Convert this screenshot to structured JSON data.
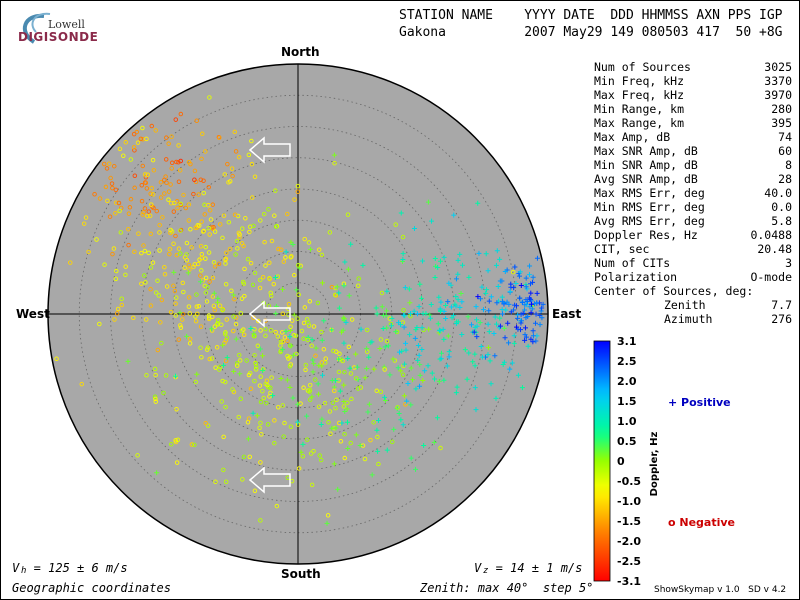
{
  "logo": {
    "line1": "Lowell",
    "line2": "DIGISONDE"
  },
  "header": {
    "line1": "STATION NAME    YYYY DATE  DDD HHMMSS AXN PPS IGP",
    "line2": "Gakona          2007 May29 149 080503 417  50 +8G"
  },
  "stats": [
    {
      "label": "Num of Sources",
      "value": "3025"
    },
    {
      "label": "Min Freq, kHz",
      "value": "3370"
    },
    {
      "label": "Max Freq, kHz",
      "value": "3970"
    },
    {
      "label": "Min Range, km",
      "value": "280"
    },
    {
      "label": "Max Range, km",
      "value": "395"
    },
    {
      "label": "Max Amp, dB",
      "value": "74"
    },
    {
      "label": "Max SNR Amp, dB",
      "value": "60"
    },
    {
      "label": "Min SNR Amp, dB",
      "value": "8"
    },
    {
      "label": "Avg SNR Amp, dB",
      "value": "28"
    },
    {
      "label": "Max RMS Err, deg",
      "value": "40.0"
    },
    {
      "label": "Min RMS Err, deg",
      "value": "0.0"
    },
    {
      "label": "Avg RMS Err, deg",
      "value": "5.8"
    },
    {
      "label": "Doppler Res, Hz",
      "value": "0.0488"
    },
    {
      "label": "CIT, sec",
      "value": "20.48"
    },
    {
      "label": "Num of CITs",
      "value": "3"
    },
    {
      "label": "Polarization",
      "value": "O-mode"
    },
    {
      "label": "Center of Sources, deg:",
      "value": ""
    },
    {
      "label": "Zenith",
      "value": "7.7",
      "indent": true
    },
    {
      "label": "Azimuth",
      "value": "276",
      "indent": true
    }
  ],
  "directions": {
    "north": "North",
    "south": "South",
    "east": "East",
    "west": "West"
  },
  "footer": {
    "vh": "V  = 125 ± 6 m/s",
    "vh_sub": "h",
    "vz": "V  = 14 ± 1 m/s",
    "vz_sub": "z",
    "coords": "Geographic coordinates",
    "zenith": "Zenith: max 40°  step 5°",
    "version": "ShowSkymap v 1.0   SD v 4.2"
  },
  "legend": {
    "positive": "+ Positive",
    "negative": "o Negative"
  },
  "colors": {
    "plot_bg": "#a8a8a8",
    "positive": "#0000c0",
    "negative": "#cc0000"
  },
  "chart_data": {
    "type": "scatter",
    "projection": "polar-skymap",
    "zenith_max_deg": 40,
    "zenith_step_deg": 5,
    "colorbar": {
      "label": "Doppler, Hz",
      "range": [
        -3.1,
        3.1
      ],
      "ticks": [
        "3.1",
        "2.5",
        "2.0",
        "1.5",
        "1.0",
        "0.5",
        "0",
        "-0.5",
        "-1.0",
        "-1.5",
        "-2.0",
        "-2.5",
        "-3.1"
      ]
    },
    "velocity_arrows_azimuth_deg": [
      270,
      270,
      270
    ],
    "clusters": [
      {
        "doppler_hz": -1.8,
        "zenith_center_deg": 32,
        "azimuth_center_deg": 315,
        "spread_deg": 6,
        "share": 0.1
      },
      {
        "doppler_hz": -0.9,
        "zenith_center_deg": 18,
        "azimuth_center_deg": 300,
        "spread_deg": 9,
        "share": 0.25
      },
      {
        "doppler_hz": -0.4,
        "zenith_center_deg": 10,
        "azimuth_center_deg": 200,
        "spread_deg": 10,
        "share": 0.25
      },
      {
        "doppler_hz": 0.4,
        "zenith_center_deg": 12,
        "azimuth_center_deg": 120,
        "spread_deg": 10,
        "share": 0.15
      },
      {
        "doppler_hz": 1.3,
        "zenith_center_deg": 25,
        "azimuth_center_deg": 92,
        "spread_deg": 7,
        "share": 0.15
      },
      {
        "doppler_hz": 2.4,
        "zenith_center_deg": 36,
        "azimuth_center_deg": 87,
        "spread_deg": 3,
        "share": 0.1
      }
    ]
  }
}
